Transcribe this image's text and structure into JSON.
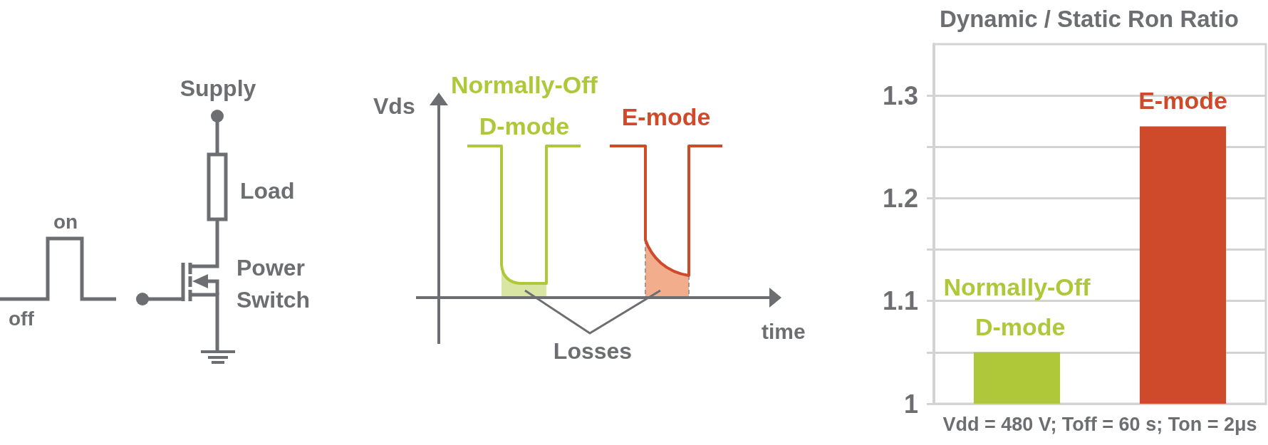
{
  "chart_data": [
    {
      "type": "other",
      "annotations": [
        "Supply",
        "Load",
        "Power Switch",
        "on",
        "off"
      ]
    },
    {
      "type": "other",
      "xlabel": "time",
      "ylabel": "Vds",
      "annotations": [
        "Normally-Off D-mode",
        "E-mode",
        "Losses"
      ]
    },
    {
      "type": "bar",
      "title": "Dynamic / Static Ron Ratio",
      "categories": [
        "Normally-Off D-mode",
        "E-mode"
      ],
      "values": [
        1.05,
        1.27
      ],
      "colors": [
        "#afc83a",
        "#cf4a2b"
      ],
      "ylim": [
        1,
        1.35
      ],
      "yticks": [
        1,
        {
          "value": 1.05,
          "label": null
        },
        1.1,
        {
          "value": 1.15,
          "label": null
        },
        1.2,
        {
          "value": 1.25,
          "label": null
        },
        1.3
      ],
      "grid": "y",
      "annotations": [
        "Vdd = 480 V; Toff = 60 s; Ton = 2μs"
      ]
    }
  ]
}
